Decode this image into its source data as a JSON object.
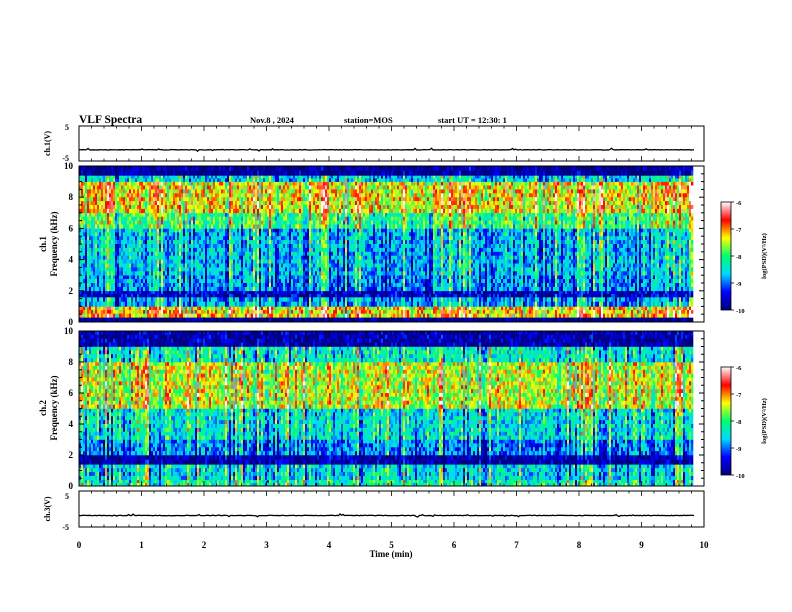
{
  "header": {
    "title": "VLF Spectra",
    "date": "Nov.8 , 2024",
    "station": "station=MOS",
    "start": "start UT = 12:30: 1"
  },
  "chart_data": [
    {
      "type": "line",
      "panel": "ch1-waveform",
      "ylabel": "ch.1(V)",
      "ylim": [
        -5,
        5
      ],
      "ytick_labels": [
        "5",
        "-5"
      ],
      "xlim": [
        0,
        10
      ],
      "series": [
        {
          "x": [
            0,
            9.85
          ],
          "values": [
            -1.8,
            -1.8
          ]
        }
      ]
    },
    {
      "type": "heatmap",
      "panel": "ch1-spectrogram",
      "ylabel_line1": "ch.1",
      "ylabel_line2": "Frequency (kHz)",
      "ylim": [
        0,
        10
      ],
      "xlim": [
        0,
        9.85
      ],
      "ytick_labels": [
        "0",
        "2",
        "4",
        "6",
        "8",
        "10"
      ],
      "colorbar": {
        "label": "log(PSD)(V²/Hz)",
        "min": -10,
        "max": -6,
        "tick_labels": [
          "-6",
          "-7",
          "-8",
          "-9",
          "-10"
        ]
      },
      "bands": [
        {
          "from_khz": 0.0,
          "to_khz": 0.3,
          "level": -10.0
        },
        {
          "from_khz": 0.3,
          "to_khz": 1.0,
          "level": -7.2
        },
        {
          "from_khz": 1.0,
          "to_khz": 1.6,
          "level": -8.8
        },
        {
          "from_khz": 1.6,
          "to_khz": 2.0,
          "level": -9.6
        },
        {
          "from_khz": 2.0,
          "to_khz": 3.0,
          "level": -8.9
        },
        {
          "from_khz": 3.0,
          "to_khz": 6.0,
          "level": -8.7
        },
        {
          "from_khz": 6.0,
          "to_khz": 7.0,
          "level": -8.0
        },
        {
          "from_khz": 7.0,
          "to_khz": 9.0,
          "level": -7.3
        },
        {
          "from_khz": 9.0,
          "to_khz": 9.4,
          "level": -8.6
        },
        {
          "from_khz": 9.4,
          "to_khz": 10.0,
          "level": -9.9
        }
      ]
    },
    {
      "type": "heatmap",
      "panel": "ch2-spectrogram",
      "ylabel_line1": "ch.2",
      "ylabel_line2": "Frequency (kHz)",
      "ylim": [
        0,
        10
      ],
      "xlim": [
        0,
        9.85
      ],
      "ytick_labels": [
        "0",
        "2",
        "4",
        "6",
        "8",
        "10"
      ],
      "colorbar": {
        "label": "log(PSD)(V²/Hz)",
        "min": -10,
        "max": -6,
        "tick_labels": [
          "-6",
          "-7",
          "-8",
          "-9",
          "-10"
        ]
      },
      "bands": [
        {
          "from_khz": 0.0,
          "to_khz": 0.4,
          "level": -8.3
        },
        {
          "from_khz": 0.4,
          "to_khz": 1.4,
          "level": -8.6
        },
        {
          "from_khz": 1.4,
          "to_khz": 2.0,
          "level": -9.8
        },
        {
          "from_khz": 2.0,
          "to_khz": 3.0,
          "level": -9.0
        },
        {
          "from_khz": 3.0,
          "to_khz": 5.0,
          "level": -8.5
        },
        {
          "from_khz": 5.0,
          "to_khz": 8.0,
          "level": -7.5
        },
        {
          "from_khz": 8.0,
          "to_khz": 9.0,
          "level": -8.4
        },
        {
          "from_khz": 9.0,
          "to_khz": 10.0,
          "level": -9.8
        }
      ]
    },
    {
      "type": "line",
      "panel": "ch3-waveform",
      "ylabel": "ch.3(V)",
      "ylim": [
        -5,
        5
      ],
      "ytick_labels": [
        "5",
        "-5"
      ],
      "xlim": [
        0,
        10
      ],
      "xlabel": "Time (min)",
      "xtick_labels": [
        "0",
        "1",
        "2",
        "3",
        "4",
        "5",
        "6",
        "7",
        "8",
        "9",
        "10"
      ],
      "series": [
        {
          "x": [
            0,
            9.85
          ],
          "values": [
            -1.8,
            -1.8
          ]
        }
      ]
    }
  ],
  "colors": {
    "colormap": [
      "#00007a",
      "#0000ff",
      "#00d8ff",
      "#00ff70",
      "#ffff00",
      "#ff0000",
      "#ffffff"
    ],
    "frame": "#000000"
  }
}
